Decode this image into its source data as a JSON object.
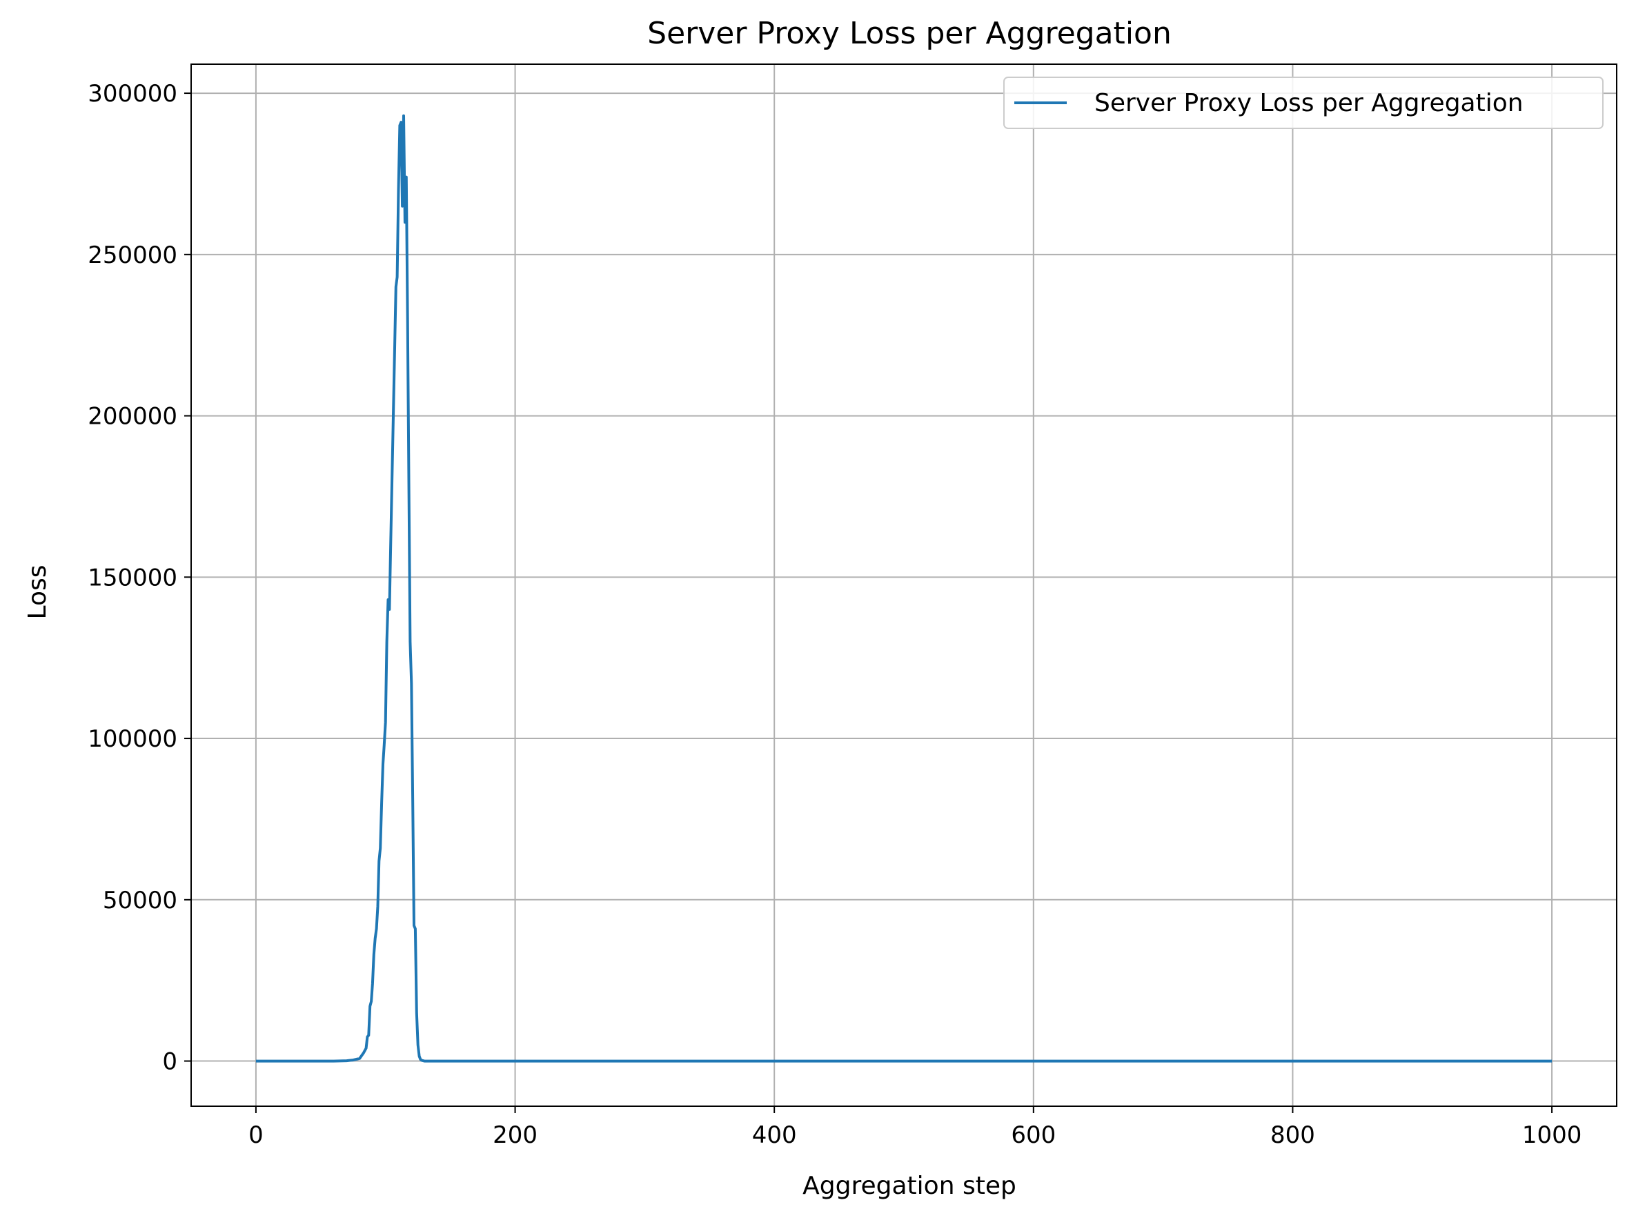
{
  "chart_data": {
    "type": "line",
    "title": "Server Proxy Loss per Aggregation",
    "xlabel": "Aggregation step",
    "ylabel": "Loss",
    "xlim": [
      -50,
      1050
    ],
    "ylim": [
      -14000,
      309000
    ],
    "xticks": [
      0,
      200,
      400,
      600,
      800,
      1000
    ],
    "yticks": [
      0,
      50000,
      100000,
      150000,
      200000,
      250000,
      300000
    ],
    "grid": true,
    "legend_position": "top-right",
    "series": [
      {
        "name": "Server Proxy Loss per Aggregation",
        "color": "#1f77b4",
        "x": [
          0,
          60,
          70,
          75,
          80,
          83,
          85,
          86,
          87,
          88,
          89,
          90,
          91,
          92,
          93,
          94,
          95,
          96,
          97,
          98,
          99,
          100,
          101,
          102,
          103,
          104,
          105,
          106,
          107,
          108,
          109,
          110,
          111,
          112,
          113,
          114,
          115,
          116,
          117,
          118,
          119,
          120,
          121,
          122,
          123,
          124,
          125,
          126,
          127,
          128,
          129,
          130,
          132,
          135,
          140,
          200,
          400,
          600,
          800,
          1000
        ],
        "y": [
          0,
          0,
          100,
          300,
          800,
          2500,
          4000,
          7500,
          8000,
          17000,
          18500,
          24000,
          33000,
          38000,
          41000,
          48000,
          62000,
          66000,
          80000,
          92000,
          98000,
          105000,
          130000,
          143000,
          140000,
          160000,
          180000,
          200000,
          220000,
          240000,
          243000,
          270000,
          290000,
          291000,
          265000,
          293000,
          260000,
          274000,
          230000,
          180000,
          130000,
          117000,
          80000,
          42000,
          41000,
          15000,
          5000,
          1500,
          500,
          200,
          100,
          0,
          0,
          0,
          0,
          0,
          0,
          0,
          0,
          0
        ]
      }
    ]
  }
}
